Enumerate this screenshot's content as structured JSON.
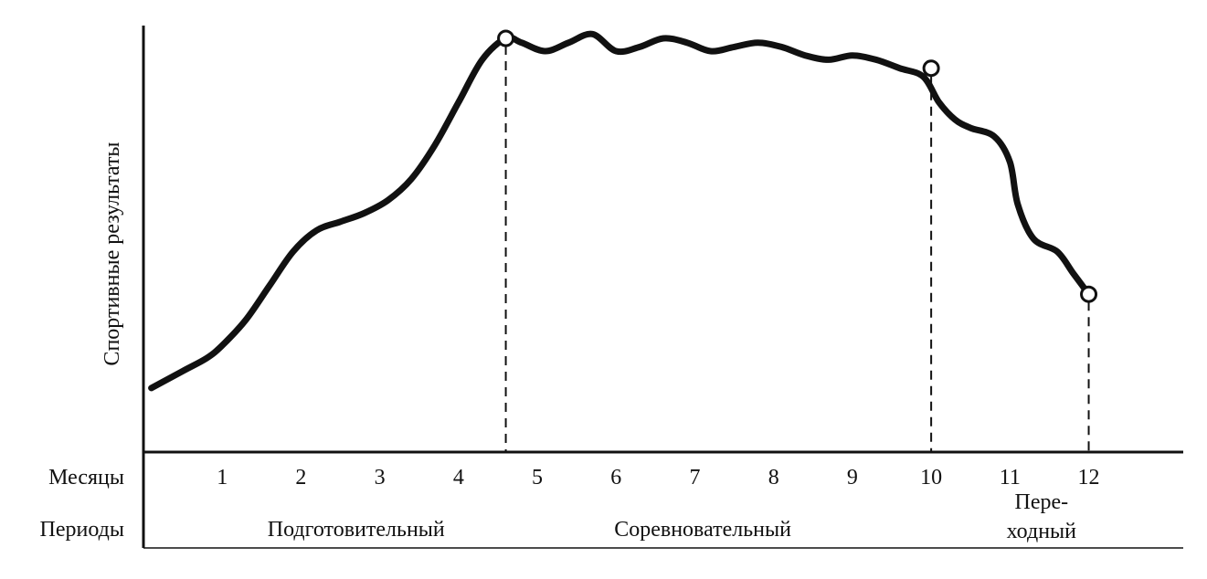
{
  "chart_data": {
    "type": "line",
    "title": "",
    "ylabel": "Спортивные результаты",
    "row_labels": {
      "months": "Месяцы",
      "periods": "Периоды"
    },
    "x_ticks": [
      "1",
      "2",
      "3",
      "4",
      "5",
      "6",
      "7",
      "8",
      "9",
      "10",
      "11",
      "12"
    ],
    "xlim": [
      0,
      13.2
    ],
    "ylim": [
      0,
      100
    ],
    "grid": false,
    "series": [
      {
        "x": [
          0.1,
          0.5,
          0.8,
          1.0,
          1.3,
          1.6,
          1.9,
          2.2,
          2.5,
          2.8,
          3.1,
          3.4,
          3.7,
          4.0,
          4.3,
          4.6,
          4.8,
          5.1,
          5.4,
          5.7,
          6.0,
          6.3,
          6.6,
          6.9,
          7.2,
          7.5,
          7.8,
          8.1,
          8.4,
          8.7,
          9.0,
          9.3,
          9.6,
          9.9,
          10.1,
          10.3,
          10.5,
          10.8,
          11.0,
          11.1,
          11.3,
          11.6,
          11.8,
          12.0
        ],
        "y": [
          15,
          19,
          22,
          25,
          31,
          39,
          47,
          52,
          54,
          56,
          59,
          64,
          72,
          82,
          92,
          97,
          96,
          94,
          96,
          98,
          94,
          95,
          97,
          96,
          94,
          95,
          96,
          95,
          93,
          92,
          93,
          92,
          90,
          88,
          82,
          78,
          76,
          74,
          68,
          58,
          50,
          47,
          42,
          37
        ]
      }
    ],
    "phase_markers": [
      {
        "x": 4.6,
        "y": 97
      },
      {
        "x": 10.0,
        "y": 90
      },
      {
        "x": 12.0,
        "y": 37
      }
    ],
    "periods": [
      {
        "label": "Подготовительный",
        "center_month": 2.7
      },
      {
        "label": "Соревновательный",
        "center_month": 7.1
      },
      {
        "label_lines": [
          "Пере-",
          "ходный"
        ],
        "center_month": 11.4
      }
    ]
  }
}
